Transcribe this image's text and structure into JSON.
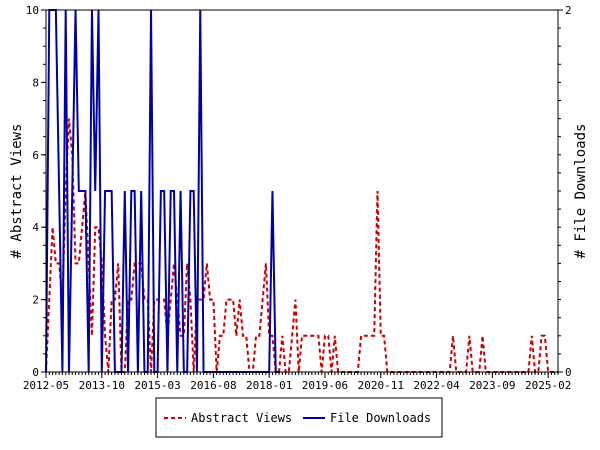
{
  "chart_data": {
    "type": "line",
    "ylabel_left": "# Abstract Views",
    "ylabel_right": "# File Downloads",
    "ylim_left": [
      0,
      10
    ],
    "ylim_right": [
      0,
      2
    ],
    "yticks_left": [
      "0",
      "2",
      "4",
      "6",
      "8",
      "10"
    ],
    "yticks_right": [
      "0",
      "2"
    ],
    "xticks": [
      "2012-05",
      "2013-10",
      "2015-03",
      "2016-08",
      "2018-01",
      "2019-06",
      "2020-11",
      "2022-04",
      "2023-09",
      "2025-02"
    ],
    "xtick_months": [
      0,
      17,
      34,
      51,
      68,
      85,
      102,
      119,
      136,
      153
    ],
    "x_range_months": [
      0,
      156
    ],
    "grid": false,
    "legend_position": "bottom",
    "colors": {
      "abstract_views": "#cc0000",
      "file_downloads": "#0000aa"
    },
    "series": [
      {
        "name": "Abstract Views",
        "axis": "left",
        "style": "dashed",
        "points": [
          [
            0,
            0
          ],
          [
            1,
            2
          ],
          [
            2,
            4
          ],
          [
            3,
            3
          ],
          [
            4,
            3
          ],
          [
            5,
            2
          ],
          [
            6,
            5
          ],
          [
            7,
            7
          ],
          [
            8,
            6
          ],
          [
            9,
            3
          ],
          [
            10,
            3
          ],
          [
            11,
            4
          ],
          [
            12,
            5
          ],
          [
            13,
            3
          ],
          [
            14,
            1
          ],
          [
            15,
            4
          ],
          [
            16,
            4
          ],
          [
            17,
            3
          ],
          [
            18,
            1
          ],
          [
            19,
            0
          ],
          [
            20,
            2
          ],
          [
            21,
            2
          ],
          [
            22,
            3
          ],
          [
            23,
            0
          ],
          [
            24,
            0
          ],
          [
            25,
            2
          ],
          [
            26,
            2
          ],
          [
            27,
            3
          ],
          [
            28,
            3
          ],
          [
            29,
            3
          ],
          [
            30,
            2
          ],
          [
            31,
            2
          ],
          [
            32,
            0
          ],
          [
            33,
            2
          ],
          [
            34,
            2
          ],
          [
            35,
            2
          ],
          [
            36,
            2
          ],
          [
            37,
            1
          ],
          [
            38,
            2
          ],
          [
            39,
            3
          ],
          [
            40,
            2
          ],
          [
            41,
            1
          ],
          [
            42,
            1
          ],
          [
            43,
            3
          ],
          [
            44,
            2
          ],
          [
            45,
            0
          ],
          [
            46,
            2
          ],
          [
            47,
            2
          ],
          [
            48,
            2
          ],
          [
            49,
            3
          ],
          [
            50,
            2
          ],
          [
            51,
            2
          ],
          [
            52,
            0
          ],
          [
            53,
            1
          ],
          [
            54,
            1
          ],
          [
            55,
            2
          ],
          [
            56,
            2
          ],
          [
            57,
            2
          ],
          [
            58,
            1
          ],
          [
            59,
            2
          ],
          [
            60,
            1
          ],
          [
            61,
            1
          ],
          [
            62,
            0
          ],
          [
            63,
            0
          ],
          [
            64,
            1
          ],
          [
            65,
            1
          ],
          [
            66,
            2
          ],
          [
            67,
            3
          ],
          [
            68,
            1
          ],
          [
            69,
            1
          ],
          [
            70,
            0
          ],
          [
            71,
            0
          ],
          [
            72,
            1
          ],
          [
            73,
            0
          ],
          [
            74,
            0
          ],
          [
            75,
            1
          ],
          [
            76,
            2
          ],
          [
            77,
            0
          ],
          [
            78,
            1
          ],
          [
            79,
            1
          ],
          [
            80,
            1
          ],
          [
            81,
            1
          ],
          [
            82,
            1
          ],
          [
            83,
            1
          ],
          [
            84,
            0
          ],
          [
            85,
            1
          ],
          [
            86,
            1
          ],
          [
            87,
            0
          ],
          [
            88,
            1
          ],
          [
            89,
            0
          ],
          [
            90,
            0
          ],
          [
            91,
            0
          ],
          [
            92,
            0
          ],
          [
            93,
            0
          ],
          [
            94,
            0
          ],
          [
            95,
            0
          ],
          [
            96,
            1
          ],
          [
            97,
            1
          ],
          [
            98,
            1
          ],
          [
            99,
            1
          ],
          [
            100,
            1
          ],
          [
            101,
            5
          ],
          [
            102,
            1
          ],
          [
            103,
            1
          ],
          [
            104,
            0
          ],
          [
            105,
            0
          ],
          [
            106,
            0
          ],
          [
            107,
            0
          ],
          [
            108,
            0
          ],
          [
            109,
            0
          ],
          [
            110,
            0
          ],
          [
            111,
            0
          ],
          [
            112,
            0
          ],
          [
            113,
            0
          ],
          [
            114,
            0
          ],
          [
            115,
            0
          ],
          [
            116,
            0
          ],
          [
            117,
            0
          ],
          [
            118,
            0
          ],
          [
            119,
            0
          ],
          [
            120,
            0
          ],
          [
            121,
            0
          ],
          [
            122,
            0
          ],
          [
            123,
            0
          ],
          [
            124,
            1
          ],
          [
            125,
            0
          ],
          [
            126,
            0
          ],
          [
            127,
            0
          ],
          [
            128,
            0
          ],
          [
            129,
            1
          ],
          [
            130,
            0
          ],
          [
            131,
            0
          ],
          [
            132,
            0
          ],
          [
            133,
            1
          ],
          [
            134,
            0
          ],
          [
            135,
            0
          ],
          [
            136,
            0
          ],
          [
            137,
            0
          ],
          [
            138,
            0
          ],
          [
            139,
            0
          ],
          [
            140,
            0
          ],
          [
            141,
            0
          ],
          [
            142,
            0
          ],
          [
            143,
            0
          ],
          [
            144,
            0
          ],
          [
            145,
            0
          ],
          [
            146,
            0
          ],
          [
            147,
            0
          ],
          [
            148,
            1
          ],
          [
            149,
            0
          ],
          [
            150,
            0
          ],
          [
            151,
            1
          ],
          [
            152,
            1
          ],
          [
            153,
            0
          ],
          [
            154,
            0
          ],
          [
            155,
            0
          ],
          [
            156,
            0
          ]
        ]
      },
      {
        "name": "File Downloads",
        "axis": "right",
        "style": "solid",
        "points": [
          [
            0,
            0
          ],
          [
            1,
            2
          ],
          [
            2,
            2
          ],
          [
            3,
            2
          ],
          [
            4,
            1
          ],
          [
            5,
            0
          ],
          [
            6,
            2
          ],
          [
            7,
            0
          ],
          [
            8,
            1
          ],
          [
            9,
            2
          ],
          [
            10,
            1
          ],
          [
            11,
            1
          ],
          [
            12,
            1
          ],
          [
            13,
            0
          ],
          [
            14,
            2
          ],
          [
            15,
            1
          ],
          [
            16,
            2
          ],
          [
            17,
            0
          ],
          [
            18,
            1
          ],
          [
            19,
            1
          ],
          [
            20,
            1
          ],
          [
            21,
            0
          ],
          [
            22,
            0
          ],
          [
            23,
            0
          ],
          [
            24,
            1
          ],
          [
            25,
            0
          ],
          [
            26,
            1
          ],
          [
            27,
            1
          ],
          [
            28,
            0
          ],
          [
            29,
            1
          ],
          [
            30,
            0
          ],
          [
            31,
            0
          ],
          [
            32,
            2
          ],
          [
            33,
            0
          ],
          [
            34,
            0
          ],
          [
            35,
            1
          ],
          [
            36,
            1
          ],
          [
            37,
            0
          ],
          [
            38,
            1
          ],
          [
            39,
            1
          ],
          [
            40,
            0
          ],
          [
            41,
            1
          ],
          [
            42,
            0
          ],
          [
            43,
            0
          ],
          [
            44,
            1
          ],
          [
            45,
            1
          ],
          [
            46,
            0
          ],
          [
            47,
            2
          ],
          [
            48,
            0
          ],
          [
            49,
            0
          ],
          [
            50,
            0
          ],
          [
            51,
            0
          ],
          [
            52,
            0
          ],
          [
            53,
            0
          ],
          [
            54,
            0
          ],
          [
            55,
            0
          ],
          [
            56,
            0
          ],
          [
            57,
            0
          ],
          [
            58,
            0
          ],
          [
            59,
            0
          ],
          [
            60,
            0
          ],
          [
            61,
            0
          ],
          [
            62,
            0
          ],
          [
            63,
            0
          ],
          [
            64,
            0
          ],
          [
            65,
            0
          ],
          [
            66,
            0
          ],
          [
            67,
            0
          ],
          [
            68,
            0
          ],
          [
            69,
            1
          ],
          [
            70,
            0
          ],
          [
            71,
            0
          ]
        ]
      }
    ]
  }
}
